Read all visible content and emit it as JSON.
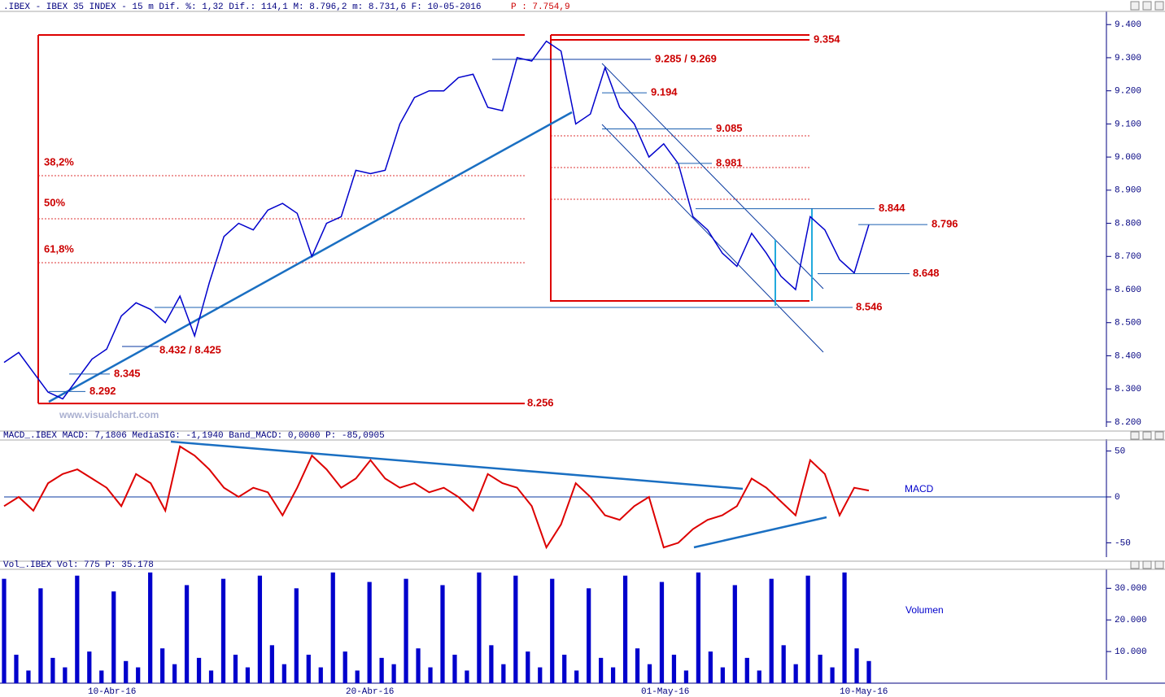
{
  "header": {
    "title": ".IBEX - IBEX 35 INDEX -  15 m Dif. %: 1,32 Dif.: 114,1 M: 8.796,2 m: 8.731,6 F: 10-05-2016",
    "extra": "P : 7.754,9"
  },
  "watermark": "www.visualchart.com",
  "x_labels": [
    "10-Abr-16",
    "20-Abr-16",
    "01-May-16",
    "10-May-16"
  ],
  "chart_data": [
    {
      "type": "line",
      "color": "#0000cc",
      "values": [
        8380,
        8410,
        8350,
        8290,
        8270,
        8330,
        8390,
        8420,
        8520,
        8560,
        8540,
        8500,
        8580,
        8460,
        8620,
        8760,
        8800,
        8780,
        8840,
        8860,
        8830,
        8700,
        8800,
        8820,
        8960,
        8950,
        8960,
        9100,
        9180,
        9200,
        9200,
        9240,
        9250,
        9150,
        9140,
        9300,
        9290,
        9350,
        9320,
        9100,
        9130,
        9270,
        9150,
        9100,
        9000,
        9040,
        8980,
        8820,
        8780,
        8710,
        8670,
        8770,
        8710,
        8640,
        8600,
        8820,
        8780,
        8690,
        8650,
        8796
      ],
      "ylim": [
        8185,
        9430
      ],
      "yticks": [
        {
          "value": 9400,
          "label": "9.400"
        },
        {
          "value": 9300,
          "label": "9.300"
        },
        {
          "value": 9200,
          "label": "9.200"
        },
        {
          "value": 9100,
          "label": "9.100"
        },
        {
          "value": 9000,
          "label": "9.000"
        },
        {
          "value": 8900,
          "label": "8.900"
        },
        {
          "value": 8800,
          "label": "8.800"
        },
        {
          "value": 8700,
          "label": "8.700"
        },
        {
          "value": 8600,
          "label": "8.600"
        },
        {
          "value": 8500,
          "label": "8.500"
        },
        {
          "value": 8400,
          "label": "8.400"
        },
        {
          "value": 8300,
          "label": "8.300"
        },
        {
          "value": 8200,
          "label": "8.200"
        }
      ],
      "levels": [
        {
          "value": 9354,
          "label": "9.354"
        },
        {
          "value": 9194,
          "label": "9.194"
        },
        {
          "value": 9085,
          "label": "9.085"
        },
        {
          "value": 8981,
          "label": "8.981"
        },
        {
          "value": 8844,
          "label": "8.844"
        },
        {
          "value": 8796,
          "label": "8.796"
        },
        {
          "value": 8648,
          "label": "8.648"
        },
        {
          "value": 8546,
          "label": "8.546"
        },
        {
          "value": 8345,
          "label": "8.345"
        },
        {
          "value": 8292,
          "label": "8.292"
        },
        {
          "value": 8256,
          "label": "8.256"
        }
      ],
      "text_annotations": [
        "9.285 / 9.269",
        "8.432 / 8.425",
        "38,2%",
        "50%",
        "61,8%"
      ]
    },
    {
      "type": "line",
      "title": "MACD_.IBEX MACD: 7,1806 MediaSIG: -1,1940 Band_MACD: 0,0000 P: -85,0905",
      "label": "MACD",
      "color": "#dd0000",
      "values": [
        -10,
        0,
        -15,
        15,
        25,
        30,
        20,
        10,
        -10,
        25,
        15,
        -15,
        55,
        45,
        30,
        10,
        0,
        10,
        5,
        -20,
        10,
        45,
        30,
        10,
        20,
        40,
        20,
        10,
        15,
        5,
        10,
        0,
        -15,
        25,
        15,
        10,
        -10,
        -55,
        -30,
        15,
        0,
        -20,
        -25,
        -10,
        0,
        -55,
        -50,
        -35,
        -25,
        -20,
        -10,
        20,
        10,
        -5,
        -20,
        40,
        25,
        -20,
        10,
        7
      ],
      "ylim": [
        -70,
        62
      ],
      "yticks": [
        50,
        0,
        -50
      ]
    },
    {
      "type": "bar",
      "title": "Vol_.IBEX Vol: 775 P: 35.178",
      "label": "Volumen",
      "color": "#0000cc",
      "values": [
        33000,
        9000,
        4000,
        30000,
        8000,
        5000,
        34000,
        10000,
        4000,
        29000,
        7000,
        5000,
        35000,
        11000,
        6000,
        31000,
        8000,
        4000,
        33000,
        9000,
        5000,
        34000,
        12000,
        6000,
        30000,
        9000,
        5000,
        35000,
        10000,
        4000,
        32000,
        8000,
        6000,
        33000,
        11000,
        5000,
        31000,
        9000,
        4000,
        35000,
        12000,
        6000,
        34000,
        10000,
        5000,
        33000,
        9000,
        4000,
        30000,
        8000,
        5000,
        34000,
        11000,
        6000,
        32000,
        9000,
        4000,
        35000,
        10000,
        5000,
        31000,
        8000,
        4000,
        33000,
        12000,
        6000,
        34000,
        9000,
        5000,
        35000,
        11000,
        7000
      ],
      "ylim": [
        0,
        36000
      ],
      "yticks": [
        {
          "value": 30000,
          "label": "30.000"
        },
        {
          "value": 20000,
          "label": "20.000"
        },
        {
          "value": 10000,
          "label": "10.000"
        }
      ]
    }
  ]
}
